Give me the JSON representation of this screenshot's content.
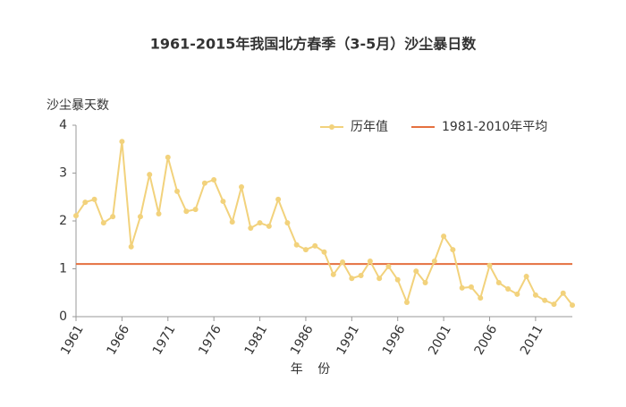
{
  "chart_data": {
    "type": "line",
    "title": "1961-2015年我国北方春季（3-5月）沙尘暴日数",
    "y_label": "沙尘暴天数",
    "x_label": "年 份",
    "x": [
      1961,
      1962,
      1963,
      1964,
      1965,
      1966,
      1967,
      1968,
      1969,
      1970,
      1971,
      1972,
      1973,
      1974,
      1975,
      1976,
      1977,
      1978,
      1979,
      1980,
      1981,
      1982,
      1983,
      1984,
      1985,
      1986,
      1987,
      1988,
      1989,
      1990,
      1991,
      1992,
      1993,
      1994,
      1995,
      1996,
      1997,
      1998,
      1999,
      2000,
      2001,
      2002,
      2003,
      2004,
      2005,
      2006,
      2007,
      2008,
      2009,
      2010,
      2011,
      2012,
      2013,
      2014,
      2015
    ],
    "series": [
      {
        "name": "历年值",
        "color": "#f2d27c",
        "values": [
          2.11,
          2.39,
          2.45,
          1.96,
          2.09,
          3.66,
          1.46,
          2.09,
          2.97,
          2.15,
          3.33,
          2.62,
          2.2,
          2.24,
          2.79,
          2.86,
          2.41,
          1.98,
          2.71,
          1.85,
          1.96,
          1.89,
          2.45,
          1.96,
          1.5,
          1.4,
          1.48,
          1.35,
          0.88,
          1.14,
          0.8,
          0.86,
          1.16,
          0.8,
          1.05,
          0.77,
          0.3,
          0.95,
          0.71,
          1.16,
          1.68,
          1.4,
          0.6,
          0.62,
          0.39,
          1.07,
          0.71,
          0.58,
          0.47,
          0.84,
          0.45,
          0.34,
          0.26,
          0.49,
          0.24
        ]
      }
    ],
    "reference_lines": [
      {
        "name": "1981-2010年平均",
        "value": 1.1,
        "color": "#e5703f"
      }
    ],
    "xlim": [
      1961,
      2015
    ],
    "xticks": [
      1961,
      1966,
      1971,
      1976,
      1981,
      1986,
      1991,
      1996,
      2001,
      2006,
      2011
    ],
    "ylim": [
      0,
      4
    ],
    "yticks": [
      0,
      1,
      2,
      3,
      4
    ],
    "legend": "upper right"
  }
}
